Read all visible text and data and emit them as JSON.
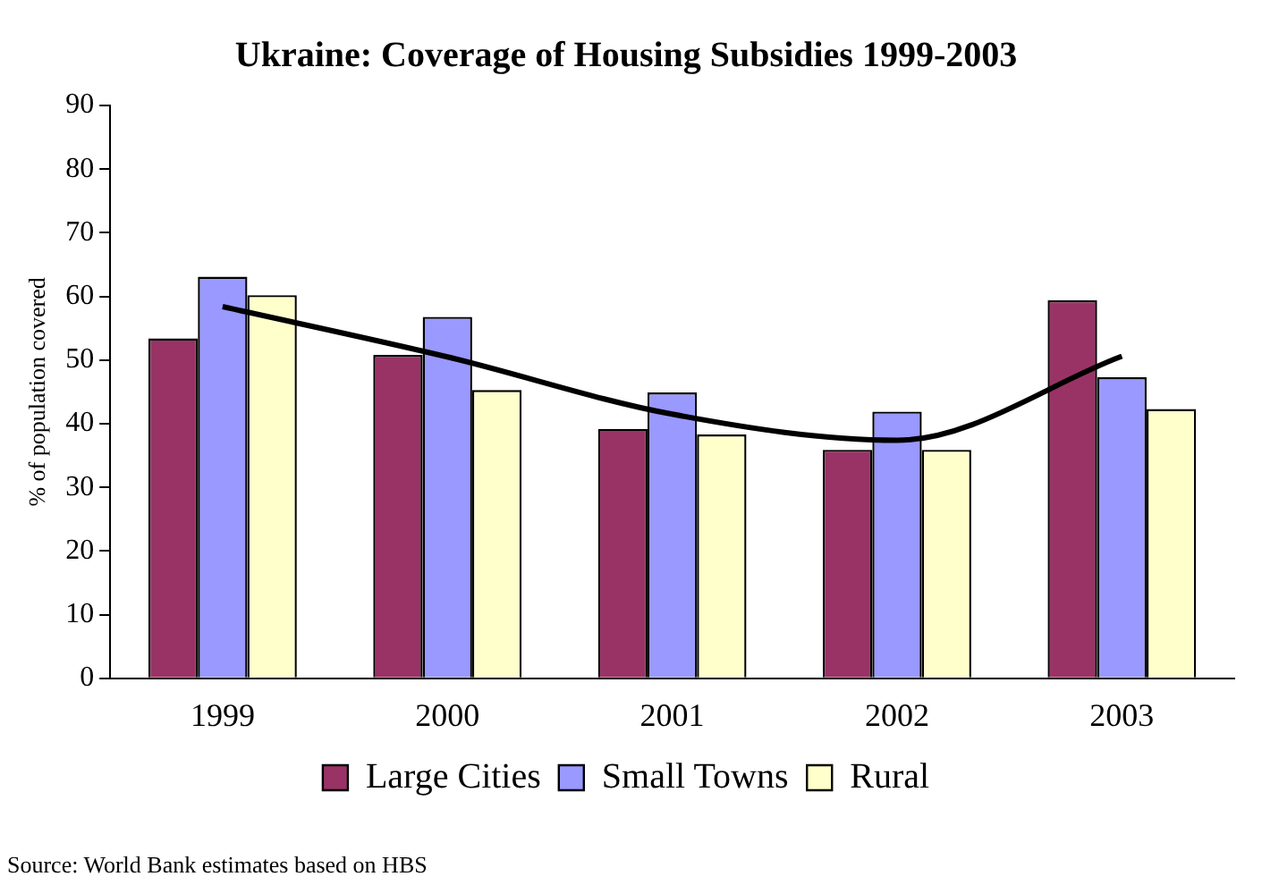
{
  "chart_data": {
    "type": "bar",
    "title": "Ukraine: Coverage of Housing Subsidies 1999-2003",
    "ylabel": "% of population covered",
    "categories": [
      "1999",
      "2000",
      "2001",
      "2002",
      "2003"
    ],
    "series": [
      {
        "name": "Large Cities",
        "color": "#993366",
        "values": [
          53.4,
          50.8,
          39.2,
          35.9,
          59.4
        ]
      },
      {
        "name": "Small Towns",
        "color": "#9999ff",
        "values": [
          63.1,
          56.8,
          44.9,
          41.9,
          47.3
        ]
      },
      {
        "name": "Rural",
        "color": "#ffffcc",
        "values": [
          60.2,
          45.3,
          38.3,
          35.9,
          42.3
        ]
      },
      {
        "type": "line",
        "color": "#000000",
        "values": [
          58.4,
          50.5,
          41.5,
          37.4,
          50.6
        ],
        "marker": "none",
        "line_style": "solid"
      }
    ],
    "ylim": [
      0,
      90
    ],
    "yticks": [
      0,
      10,
      20,
      30,
      40,
      50,
      60,
      70,
      80,
      90
    ],
    "grid": false,
    "legend": "bottom",
    "annotations": [
      "Source: World Bank estimates based on HBS"
    ]
  }
}
